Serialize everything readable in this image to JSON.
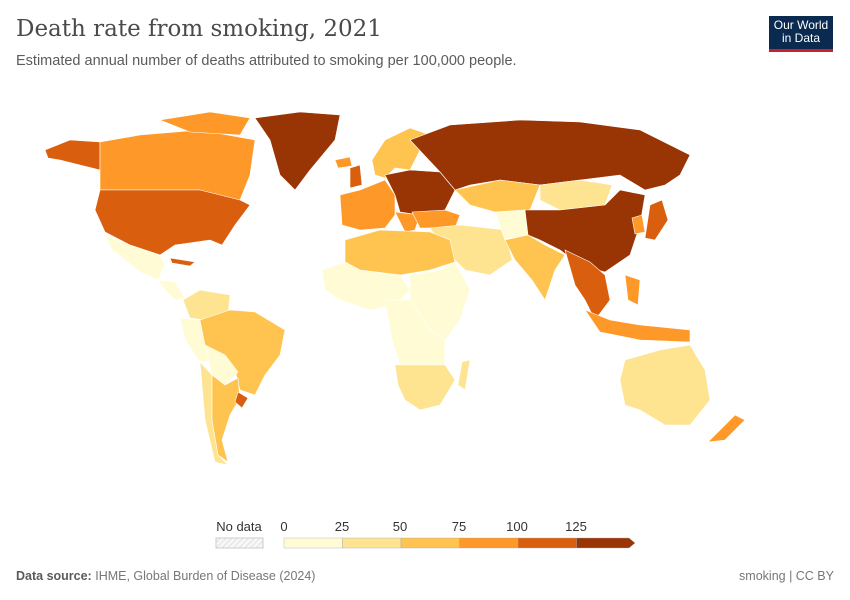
{
  "header": {
    "title": "Death rate from smoking, 2021",
    "subtitle": "Estimated annual number of deaths attributed to smoking per 100,000 people.",
    "logo": "Our World in Data"
  },
  "legend": {
    "no_data_label": "No data",
    "ticks": [
      "0",
      "25",
      "50",
      "75",
      "100",
      "125"
    ]
  },
  "footer": {
    "source_label": "Data source:",
    "source": "IHME, Global Burden of Disease (2024)",
    "license": "smoking | CC BY"
  },
  "colors": {
    "bin0": "#fffcd5",
    "bin1": "#fee391",
    "bin2": "#fec44f",
    "bin3": "#fe9929",
    "bin4": "#d95f0e",
    "bin5": "#993404",
    "nodata": "#eeeeee"
  },
  "chart_data": {
    "type": "choropleth",
    "title": "Death rate from smoking, 2021",
    "unit": "deaths per 100,000 people",
    "bins": [
      [
        0,
        25
      ],
      [
        25,
        50
      ],
      [
        50,
        75
      ],
      [
        75,
        100
      ],
      [
        100,
        125
      ],
      [
        125,
        null
      ]
    ]
  }
}
